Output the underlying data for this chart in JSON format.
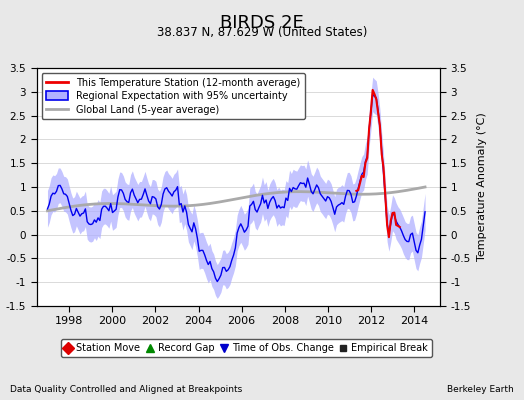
{
  "title": "BIRDS 2E",
  "subtitle": "38.837 N, 87.629 W (United States)",
  "xlabel_bottom": "Data Quality Controlled and Aligned at Breakpoints",
  "xlabel_right": "Berkeley Earth",
  "ylabel": "Temperature Anomaly (°C)",
  "xlim": [
    1996.5,
    2015.2
  ],
  "ylim": [
    -1.5,
    3.5
  ],
  "yticks": [
    -1.5,
    -1.0,
    -0.5,
    0.0,
    0.5,
    1.0,
    1.5,
    2.0,
    2.5,
    3.0,
    3.5
  ],
  "xticks": [
    1998,
    2000,
    2002,
    2004,
    2006,
    2008,
    2010,
    2012,
    2014
  ],
  "background_color": "#e8e8e8",
  "plot_bg_color": "#ffffff",
  "blue_line_color": "#0000ee",
  "blue_fill_color": "#b0b0ff",
  "red_line_color": "#ee0000",
  "gray_line_color": "#aaaaaa",
  "seed": 42
}
